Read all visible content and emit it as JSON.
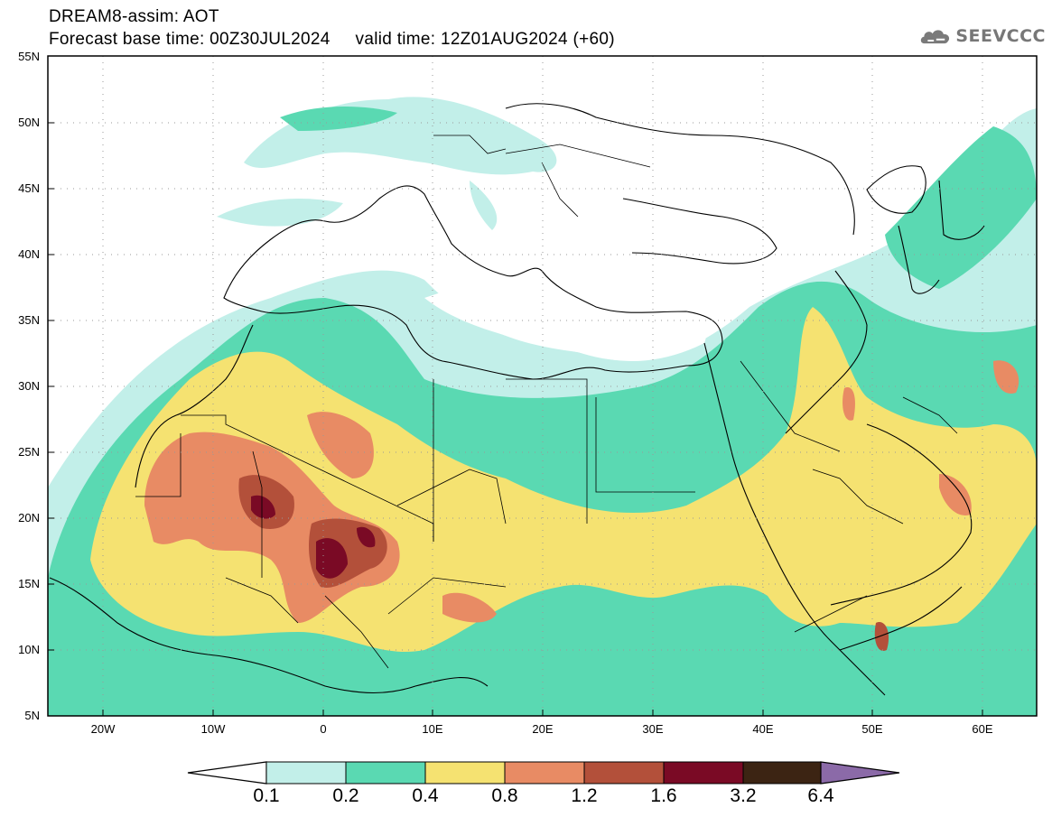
{
  "header": {
    "title_line1": "DREAM8-assim: AOT",
    "title_line2": "Forecast base time: 00Z30JUL2024     valid time: 12Z01AUG2024 (+60)"
  },
  "logo": {
    "icon": "cloud-icon",
    "text": "SEEVCCC"
  },
  "map": {
    "lat_labels": [
      "55N",
      "50N",
      "45N",
      "40N",
      "35N",
      "30N",
      "25N",
      "20N",
      "15N",
      "10N",
      "5N"
    ],
    "lon_labels": [
      "20W",
      "10W",
      "0",
      "10E",
      "20E",
      "30E",
      "40E",
      "50E",
      "60E"
    ],
    "lat_range": [
      5,
      55
    ],
    "lon_range": [
      -25,
      65
    ],
    "grid": "dotted"
  },
  "colorbar": {
    "labels": [
      "0.1",
      "0.2",
      "0.4",
      "0.8",
      "1.2",
      "1.6",
      "3.2",
      "6.4"
    ],
    "colors": [
      "#ffffff",
      "#c2efe9",
      "#5ad9b2",
      "#f5e271",
      "#e88b64",
      "#b3503a",
      "#7a0a25",
      "#3c2413",
      "#8b6aa8"
    ]
  },
  "chart_data": {
    "type": "heatmap",
    "title": "DREAM8-assim: AOT",
    "legend": "bottom",
    "color_levels": [
      0.1,
      0.2,
      0.4,
      0.8,
      1.2,
      1.6,
      3.2,
      6.4
    ],
    "x_ticks": [
      "20W",
      "10W",
      "0",
      "10E",
      "20E",
      "30E",
      "40E",
      "50E",
      "60E"
    ],
    "y_ticks": [
      "55N",
      "50N",
      "45N",
      "40N",
      "35N",
      "30N",
      "25N",
      "20N",
      "15N",
      "10N",
      "5N"
    ]
  }
}
